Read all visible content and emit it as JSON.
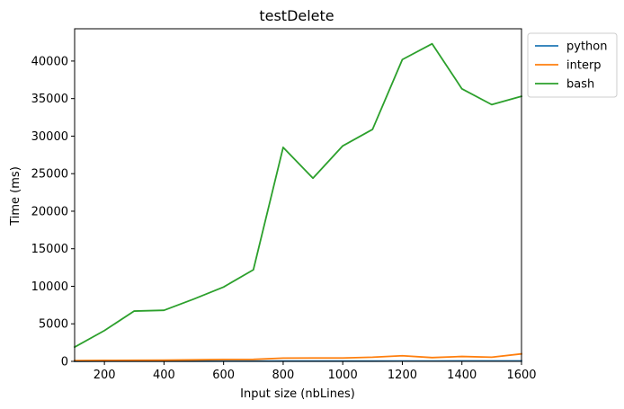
{
  "chart_data": {
    "type": "line",
    "title": "testDelete",
    "xlabel": "Input size (nbLines)",
    "ylabel": "Time (ms)",
    "xlim": [
      100,
      1600
    ],
    "ylim": [
      0,
      44300
    ],
    "xticks": [
      200,
      400,
      600,
      800,
      1000,
      1200,
      1400,
      1600
    ],
    "yticks": [
      0,
      5000,
      10000,
      15000,
      20000,
      25000,
      30000,
      35000,
      40000
    ],
    "grid": false,
    "legend_position": "outside-top-right",
    "x": [
      100,
      200,
      300,
      400,
      500,
      600,
      700,
      800,
      900,
      1000,
      1100,
      1200,
      1300,
      1400,
      1500,
      1600
    ],
    "series": [
      {
        "name": "python",
        "color": "#1f77b4",
        "values": [
          10,
          15,
          20,
          20,
          25,
          30,
          30,
          35,
          35,
          40,
          40,
          45,
          45,
          50,
          50,
          55
        ]
      },
      {
        "name": "interp",
        "color": "#ff7f0e",
        "values": [
          100,
          130,
          150,
          160,
          200,
          250,
          260,
          430,
          450,
          450,
          550,
          750,
          500,
          650,
          550,
          1000
        ]
      },
      {
        "name": "bash",
        "color": "#2ca02c",
        "values": [
          1900,
          4100,
          6700,
          6800,
          8300,
          9900,
          12200,
          28500,
          24400,
          28700,
          30900,
          40200,
          42300,
          36300,
          34200,
          35300
        ]
      }
    ]
  }
}
